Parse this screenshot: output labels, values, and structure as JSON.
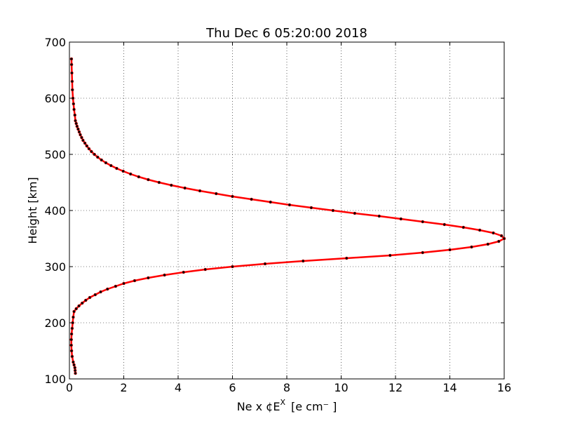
{
  "chart_data": {
    "type": "line",
    "title": "Thu Dec  6 05:20:00 2018",
    "xlabel": "Ne x ¢E",
    "xlabel_superscript": "X",
    "xlabel_units": "[e cm⁻ ]",
    "ylabel": "Height [km]",
    "xlim": [
      0,
      16
    ],
    "ylim": [
      100,
      700
    ],
    "xticks": [
      0,
      2,
      4,
      6,
      8,
      10,
      12,
      14,
      16
    ],
    "yticks": [
      100,
      200,
      300,
      400,
      500,
      600,
      700
    ],
    "grid": true,
    "colors": {
      "line": "#ff0000",
      "marker": "#000000"
    },
    "series": [
      {
        "points": [
          [
            0.22,
            110
          ],
          [
            0.21,
            115
          ],
          [
            0.2,
            120
          ],
          [
            0.17,
            125
          ],
          [
            0.14,
            130
          ],
          [
            0.1,
            140
          ],
          [
            0.08,
            150
          ],
          [
            0.07,
            160
          ],
          [
            0.07,
            170
          ],
          [
            0.08,
            180
          ],
          [
            0.1,
            190
          ],
          [
            0.12,
            200
          ],
          [
            0.14,
            210
          ],
          [
            0.17,
            220
          ],
          [
            0.25,
            225
          ],
          [
            0.35,
            230
          ],
          [
            0.47,
            235
          ],
          [
            0.6,
            240
          ],
          [
            0.75,
            245
          ],
          [
            0.95,
            250
          ],
          [
            1.15,
            255
          ],
          [
            1.4,
            260
          ],
          [
            1.7,
            265
          ],
          [
            2.0,
            270
          ],
          [
            2.4,
            275
          ],
          [
            2.9,
            280
          ],
          [
            3.5,
            285
          ],
          [
            4.2,
            290
          ],
          [
            5.0,
            295
          ],
          [
            6.0,
            300
          ],
          [
            7.2,
            305
          ],
          [
            8.6,
            310
          ],
          [
            10.2,
            315
          ],
          [
            11.8,
            320
          ],
          [
            13.0,
            325
          ],
          [
            14.0,
            330
          ],
          [
            14.8,
            335
          ],
          [
            15.4,
            340
          ],
          [
            15.8,
            345
          ],
          [
            16.0,
            350
          ],
          [
            15.9,
            355
          ],
          [
            15.6,
            360
          ],
          [
            15.1,
            365
          ],
          [
            14.5,
            370
          ],
          [
            13.8,
            375
          ],
          [
            13.0,
            380
          ],
          [
            12.2,
            385
          ],
          [
            11.4,
            390
          ],
          [
            10.5,
            395
          ],
          [
            9.7,
            400
          ],
          [
            8.9,
            405
          ],
          [
            8.1,
            410
          ],
          [
            7.4,
            415
          ],
          [
            6.7,
            420
          ],
          [
            6.0,
            425
          ],
          [
            5.4,
            430
          ],
          [
            4.8,
            435
          ],
          [
            4.25,
            440
          ],
          [
            3.75,
            445
          ],
          [
            3.3,
            450
          ],
          [
            2.9,
            455
          ],
          [
            2.55,
            460
          ],
          [
            2.25,
            465
          ],
          [
            1.98,
            470
          ],
          [
            1.74,
            475
          ],
          [
            1.53,
            480
          ],
          [
            1.34,
            485
          ],
          [
            1.18,
            490
          ],
          [
            1.04,
            495
          ],
          [
            0.92,
            500
          ],
          [
            0.81,
            505
          ],
          [
            0.72,
            510
          ],
          [
            0.64,
            515
          ],
          [
            0.57,
            520
          ],
          [
            0.5,
            525
          ],
          [
            0.45,
            530
          ],
          [
            0.4,
            535
          ],
          [
            0.36,
            540
          ],
          [
            0.32,
            545
          ],
          [
            0.28,
            550
          ],
          [
            0.25,
            555
          ],
          [
            0.22,
            560
          ],
          [
            0.2,
            570
          ],
          [
            0.17,
            580
          ],
          [
            0.15,
            590
          ],
          [
            0.13,
            600
          ],
          [
            0.11,
            615
          ],
          [
            0.1,
            630
          ],
          [
            0.09,
            645
          ],
          [
            0.08,
            660
          ],
          [
            0.075,
            670
          ]
        ]
      }
    ]
  }
}
